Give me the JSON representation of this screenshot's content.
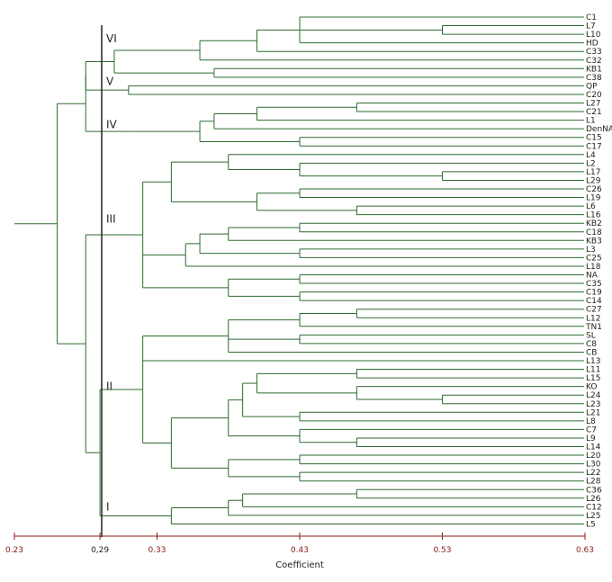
{
  "chart_data": {
    "type": "dendrogram",
    "xlabel": "Coefficient",
    "xlim": [
      0.23,
      0.63
    ],
    "ticks": [
      {
        "value": 0.23,
        "label": "0.23"
      },
      {
        "value": 0.29,
        "label": "0,29"
      },
      {
        "value": 0.33,
        "label": "0.33"
      },
      {
        "value": 0.43,
        "label": "0.43"
      },
      {
        "value": 0.53,
        "label": "0.53"
      },
      {
        "value": 0.63,
        "label": "0.63"
      }
    ],
    "cut_line": 0.29,
    "leaves": [
      "C1",
      "L7",
      "L10",
      "HD",
      "C33",
      "C32",
      "KB1",
      "C38",
      "QP",
      "C20",
      "L27",
      "C21",
      "L1",
      "DenNA",
      "C15",
      "C17",
      "L4",
      "L2",
      "L17",
      "L29",
      "C26",
      "L19",
      "L6",
      "L16",
      "KB2",
      "C18",
      "KB3",
      "L3",
      "C25",
      "L18",
      "NA",
      "C35",
      "C19",
      "C14",
      "C27",
      "L12",
      "TN1",
      "SL",
      "C8",
      "CB",
      "L13",
      "L11",
      "L15",
      "KO",
      "L24",
      "L23",
      "L21",
      "L8",
      "C7",
      "L9",
      "L14",
      "L20",
      "L30",
      "L22",
      "L28",
      "C36",
      "L26",
      "C12",
      "L25",
      "L5"
    ],
    "clusters": [
      {
        "label": "VI",
        "value": 0.29
      },
      {
        "label": "V",
        "value": 0.29
      },
      {
        "label": "IV",
        "value": 0.29
      },
      {
        "label": "III",
        "value": 0.29
      },
      {
        "label": "II",
        "value": 0.29
      },
      {
        "label": "I",
        "value": 0.29
      }
    ],
    "tree": {
      "h": 0.23,
      "c": [
        {
          "h": 0.26,
          "c": [
            {
              "h": 0.28,
              "c": [
                {
                  "h": 0.28,
                  "c": [
                    {
                      "h": 0.3,
                      "c": [
                        {
                          "h": 0.36,
                          "c": [
                            {
                              "h": 0.4,
                              "c": [
                                {
                                  "h": 0.43,
                                  "c": [
                                    "C1",
                                    {
                                      "h": 0.53,
                                      "c": [
                                        "L7",
                                        "L10"
                                      ]
                                    },
                                    "HD"
                                  ]
                                },
                                "C33"
                              ]
                            },
                            "C32"
                          ]
                        },
                        {
                          "h": 0.37,
                          "c": [
                            "KB1",
                            "C38"
                          ]
                        }
                      ]
                    },
                    {
                      "h": 0.31,
                      "c": [
                        "QP",
                        "C20"
                      ]
                    }
                  ]
                },
                {
                  "h": 0.31,
                  "c": [
                    {
                      "h": 0.36,
                      "c": [
                        {
                          "h": 0.37,
                          "c": [
                            {
                              "h": 0.4,
                              "c": [
                                {
                                  "h": 0.47,
                                  "c": [
                                    "L27",
                                    "C21"
                                  ]
                                },
                                "L1"
                              ]
                            },
                            "DenNA"
                          ]
                        },
                        {
                          "h": 0.43,
                          "c": [
                            "C15",
                            "C17"
                          ]
                        }
                      ]
                    }
                  ]
                }
              ]
            },
            {
              "h": 0.28,
              "c": [
                {
                  "h": 0.3,
                  "c": [
                    {
                      "h": 0.32,
                      "c": [
                        {
                          "h": 0.34,
                          "c": [
                            {
                              "h": 0.38,
                              "c": [
                                "L4",
                                {
                                  "h": 0.43,
                                  "c": [
                                    "L2",
                                    {
                                      "h": 0.53,
                                      "c": [
                                        "L17",
                                        "L29"
                                      ]
                                    }
                                  ]
                                }
                              ]
                            },
                            {
                              "h": 0.4,
                              "c": [
                                {
                                  "h": 0.43,
                                  "c": [
                                    "C26",
                                    "L19"
                                  ]
                                },
                                {
                                  "h": 0.47,
                                  "c": [
                                    "L6",
                                    "L16"
                                  ]
                                }
                              ]
                            }
                          ]
                        },
                        {
                          "h": 0.35,
                          "c": [
                            {
                              "h": 0.36,
                              "c": [
                                {
                                  "h": 0.38,
                                  "c": [
                                    {
                                      "h": 0.43,
                                      "c": [
                                        "KB2",
                                        "C18"
                                      ]
                                    },
                                    "KB3"
                                  ]
                                },
                                {
                                  "h": 0.43,
                                  "c": [
                                    "L3",
                                    "C25"
                                  ]
                                }
                              ]
                            },
                            "L18"
                          ]
                        },
                        {
                          "h": 0.38,
                          "c": [
                            {
                              "h": 0.43,
                              "c": [
                                "NA",
                                "C35"
                              ]
                            },
                            {
                              "h": 0.43,
                              "c": [
                                "C19",
                                "C14"
                              ]
                            }
                          ]
                        }
                      ]
                    }
                  ]
                },
                {
                  "h": 0.29,
                  "c": [
                    {
                      "h": 0.32,
                      "c": [
                        {
                          "h": 0.38,
                          "c": [
                            {
                              "h": 0.43,
                              "c": [
                                {
                                  "h": 0.47,
                                  "c": [
                                    "C27",
                                    "L12"
                                  ]
                                },
                                "TN1"
                              ]
                            },
                            {
                              "h": 0.43,
                              "c": [
                                "SL",
                                "C8"
                              ]
                            },
                            "CB"
                          ]
                        },
                        "L13",
                        {
                          "h": 0.34,
                          "c": [
                            {
                              "h": 0.38,
                              "c": [
                                {
                                  "h": 0.39,
                                  "c": [
                                    {
                                      "h": 0.4,
                                      "c": [
                                        {
                                          "h": 0.47,
                                          "c": [
                                            "L11",
                                            "L15"
                                          ]
                                        },
                                        {
                                          "h": 0.47,
                                          "c": [
                                            "KO",
                                            {
                                              "h": 0.53,
                                              "c": [
                                                "L24",
                                                "L23"
                                              ]
                                            }
                                          ]
                                        }
                                      ]
                                    },
                                    {
                                      "h": 0.43,
                                      "c": [
                                        "L21",
                                        "L8"
                                      ]
                                    }
                                  ]
                                },
                                {
                                  "h": 0.4,
                                  "c": [
                                    {
                                      "h": 0.43,
                                      "c": [
                                        "C7",
                                        {
                                          "h": 0.47,
                                          "c": [
                                            "L9",
                                            "L14"
                                          ]
                                        }
                                      ]
                                    }
                                  ]
                                }
                              ]
                            },
                            {
                              "h": 0.38,
                              "c": [
                                {
                                  "h": 0.43,
                                  "c": [
                                    "L20",
                                    "L30"
                                  ]
                                },
                                {
                                  "h": 0.43,
                                  "c": [
                                    "L22",
                                    "L28"
                                  ]
                                }
                              ]
                            }
                          ]
                        }
                      ]
                    },
                    {
                      "h": 0.34,
                      "c": [
                        {
                          "h": 0.38,
                          "c": [
                            {
                              "h": 0.39,
                              "c": [
                                {
                                  "h": 0.47,
                                  "c": [
                                    "C36",
                                    "L26"
                                  ]
                                },
                                "C12"
                              ]
                            },
                            "L25"
                          ]
                        },
                        "L5"
                      ]
                    }
                  ]
                }
              ]
            }
          ]
        }
      ]
    }
  }
}
